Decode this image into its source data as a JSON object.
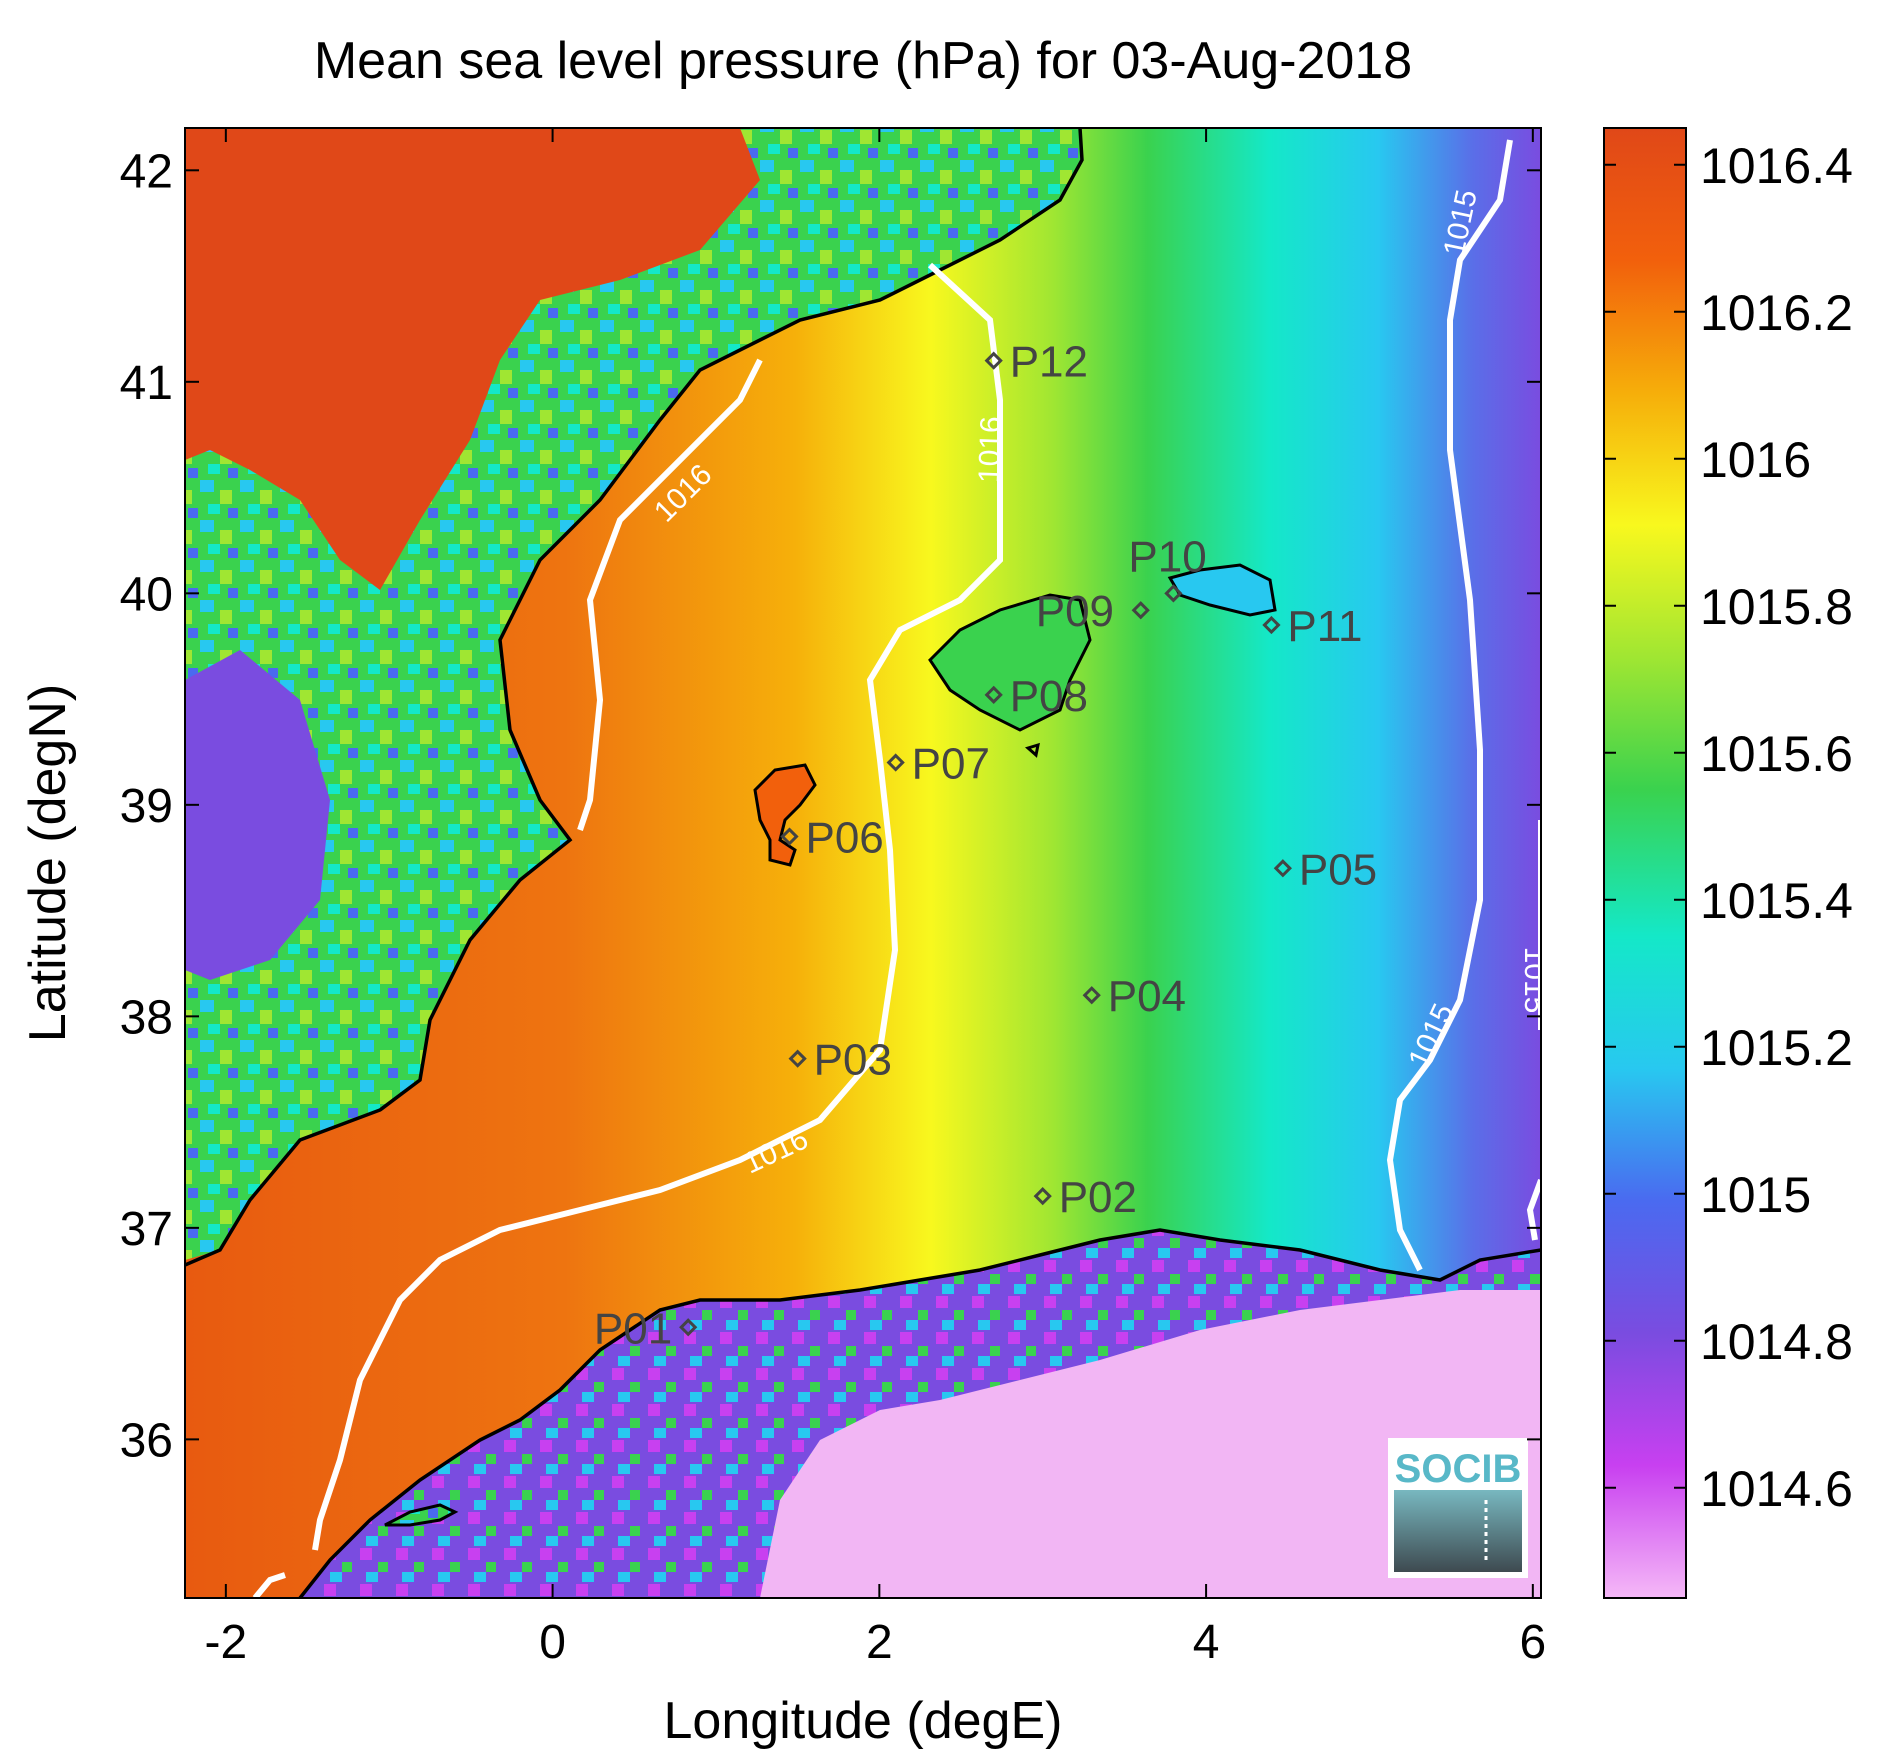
{
  "title": "Mean sea level pressure (hPa) for 03-Aug-2018",
  "x_axis": {
    "label": "Longitude (degE)",
    "range": [
      -2.25,
      6.05
    ],
    "ticks": [
      -2,
      0,
      2,
      4,
      6
    ],
    "tick_labels": [
      "-2",
      "0",
      "2",
      "4",
      "6"
    ]
  },
  "y_axis": {
    "label": "Latitude (degN)",
    "range": [
      35.25,
      42.2
    ],
    "ticks": [
      36,
      37,
      38,
      39,
      40,
      41,
      42
    ],
    "tick_labels": [
      "36",
      "37",
      "38",
      "39",
      "40",
      "41",
      "42"
    ]
  },
  "colorbar": {
    "range": [
      1014.45,
      1016.45
    ],
    "ticks": [
      1014.6,
      1014.8,
      1015,
      1015.2,
      1015.4,
      1015.6,
      1015.8,
      1016,
      1016.2,
      1016.4
    ],
    "tick_labels": [
      "1014.6",
      "1014.8",
      "1015",
      "1015.2",
      "1015.4",
      "1015.6",
      "1015.8",
      "1016",
      "1016.2",
      "1016.4"
    ],
    "colors": [
      "#f5b8f7",
      "#c840f0",
      "#7a4ce0",
      "#4a6af0",
      "#28c8f0",
      "#14e8c8",
      "#3ad24e",
      "#a0e632",
      "#f8f81e",
      "#f6ae0a",
      "#f2600c",
      "#e04818"
    ]
  },
  "contours": {
    "color": "#ffffff",
    "labels": [
      "1016",
      "1016",
      "1016",
      "1015",
      "1015",
      "1015"
    ]
  },
  "points": [
    {
      "name": "P01",
      "lon": 0.83,
      "lat": 36.53
    },
    {
      "name": "P02",
      "lon": 3.0,
      "lat": 37.15
    },
    {
      "name": "P03",
      "lon": 1.5,
      "lat": 37.8
    },
    {
      "name": "P04",
      "lon": 3.3,
      "lat": 38.1
    },
    {
      "name": "P05",
      "lon": 4.47,
      "lat": 38.7
    },
    {
      "name": "P06",
      "lon": 1.45,
      "lat": 38.85
    },
    {
      "name": "P07",
      "lon": 2.1,
      "lat": 39.2
    },
    {
      "name": "P08",
      "lon": 2.7,
      "lat": 39.52
    },
    {
      "name": "P09",
      "lon": 3.6,
      "lat": 39.92
    },
    {
      "name": "P10",
      "lon": 3.8,
      "lat": 40.0
    },
    {
      "name": "P11",
      "lon": 4.4,
      "lat": 39.85
    },
    {
      "name": "P12",
      "lon": 2.7,
      "lat": 41.1
    }
  ],
  "logo": {
    "text": "SOCIB"
  },
  "style": {
    "coast_color": "#000000",
    "point_color": "#444444",
    "land_colors": {
      "high": "#e04818",
      "mid": "#3ad24e",
      "low": "#28c8f0",
      "africa": "#f2b6f4",
      "violet": "#7a4ce0"
    },
    "logo_color": "#58b8c8"
  }
}
